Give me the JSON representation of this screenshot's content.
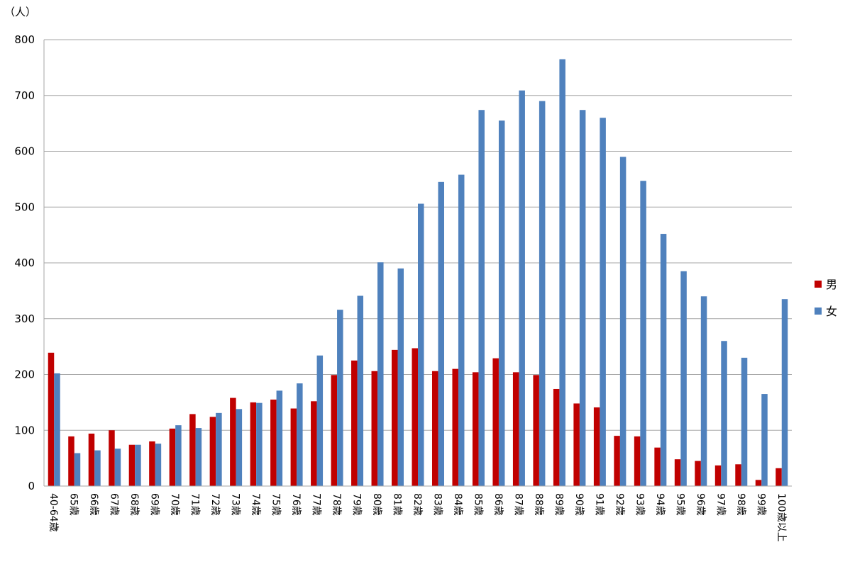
{
  "chart_data": {
    "type": "bar",
    "unit_label": "（人）",
    "categories": [
      "40-64歳",
      "65歳",
      "66歳",
      "67歳",
      "68歳",
      "69歳",
      "70歳",
      "71歳",
      "72歳",
      "73歳",
      "74歳",
      "75歳",
      "76歳",
      "77歳",
      "78歳",
      "79歳",
      "80歳",
      "81歳",
      "82歳",
      "83歳",
      "84歳",
      "85歳",
      "86歳",
      "87歳",
      "88歳",
      "89歳",
      "90歳",
      "91歳",
      "92歳",
      "93歳",
      "94歳",
      "95歳",
      "96歳",
      "97歳",
      "98歳",
      "99歳",
      "100歳以上"
    ],
    "series": [
      {
        "name": "男",
        "color": "#c00000",
        "values": [
          239,
          89,
          94,
          100,
          74,
          80,
          103,
          129,
          124,
          158,
          150,
          155,
          139,
          152,
          199,
          225,
          206,
          244,
          247,
          206,
          210,
          204,
          229,
          204,
          199,
          174,
          148,
          141,
          90,
          89,
          69,
          48,
          45,
          37,
          39,
          11,
          32
        ]
      },
      {
        "name": "女",
        "color": "#4f81bd",
        "values": [
          202,
          59,
          64,
          67,
          74,
          76,
          109,
          104,
          131,
          138,
          149,
          171,
          184,
          234,
          316,
          341,
          401,
          390,
          506,
          545,
          558,
          674,
          655,
          709,
          690,
          765,
          674,
          660,
          590,
          547,
          452,
          385,
          340,
          260,
          230,
          165,
          335
        ]
      }
    ],
    "ylim": [
      0,
      800
    ],
    "yticks": [
      0,
      100,
      200,
      300,
      400,
      500,
      600,
      700,
      800
    ],
    "grid": true,
    "legend_position": "right"
  }
}
